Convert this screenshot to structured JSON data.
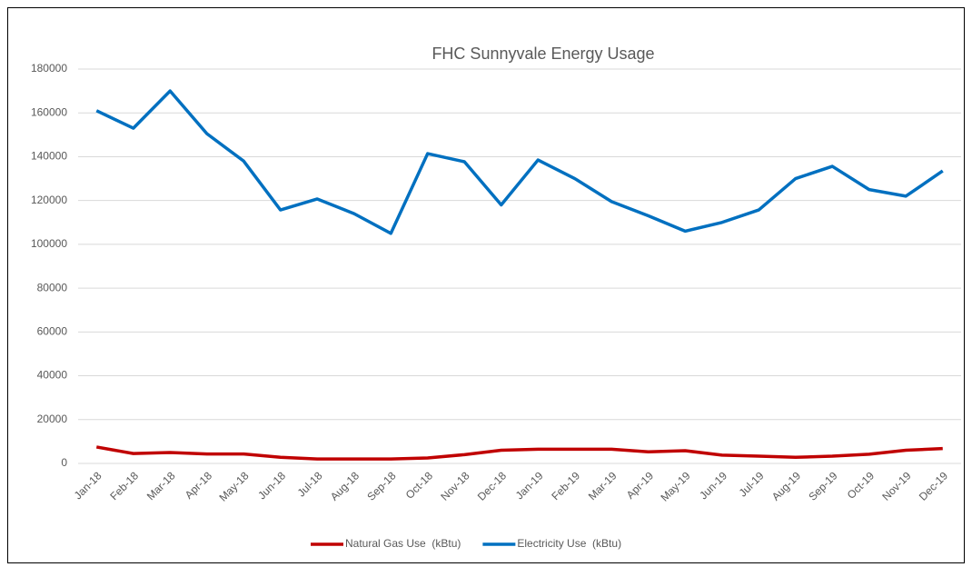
{
  "chart_data": {
    "type": "line",
    "title": "FHC Sunnyvale Energy Usage",
    "categories": [
      "Jan-18",
      "Feb-18",
      "Mar-18",
      "Apr-18",
      "May-18",
      "Jun-18",
      "Jul-18",
      "Aug-18",
      "Sep-18",
      "Oct-18",
      "Nov-18",
      "Dec-18",
      "Jan-19",
      "Feb-19",
      "Mar-19",
      "Apr-19",
      "May-19",
      "Jun-19",
      "Jul-19",
      "Aug-19",
      "Sep-19",
      "Oct-19",
      "Nov-19",
      "Dec-19"
    ],
    "series": [
      {
        "name": "Natural Gas Use  (kBtu)",
        "color": "#c00000",
        "values": [
          7500,
          4500,
          5000,
          4300,
          4300,
          2800,
          2000,
          2000,
          2000,
          2500,
          4000,
          6000,
          6500,
          6500,
          6500,
          5300,
          5800,
          3800,
          3300,
          2800,
          3300,
          4200,
          6000,
          6800
        ]
      },
      {
        "name": "Electricity Use  (kBtu)",
        "color": "#0070c0",
        "values": [
          161000,
          153000,
          170000,
          150500,
          138000,
          115700,
          120700,
          114000,
          105000,
          141400,
          137700,
          118000,
          138500,
          130000,
          119500,
          113000,
          106000,
          110000,
          115700,
          130000,
          135600,
          125000,
          122000,
          133500
        ]
      }
    ],
    "ylim": [
      0,
      180000
    ],
    "yticks": [
      0,
      20000,
      40000,
      60000,
      80000,
      100000,
      120000,
      140000,
      160000,
      180000
    ],
    "grid": true,
    "legend": "bottom"
  }
}
